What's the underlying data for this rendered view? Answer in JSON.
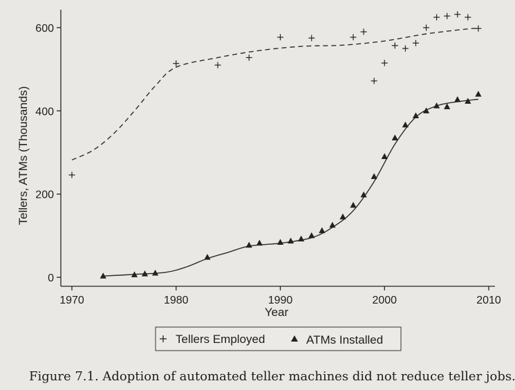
{
  "chart_data": {
    "type": "scatter",
    "xlabel": "Year",
    "ylabel": "Tellers, ATMs (Thousands)",
    "xlim": [
      1970,
      2010
    ],
    "ylim": [
      0,
      600
    ],
    "xticks": [
      1970,
      1980,
      1990,
      2000,
      2010
    ],
    "yticks": [
      0,
      200,
      400,
      600
    ],
    "grid": false,
    "legend": "bottom",
    "series": [
      {
        "name": "Tellers Employed",
        "marker": "plus",
        "fit_line": "dashed",
        "points": [
          [
            1970,
            246
          ],
          [
            1980,
            514
          ],
          [
            1984,
            510
          ],
          [
            1987,
            528
          ],
          [
            1990,
            577
          ],
          [
            1993,
            575
          ],
          [
            1997,
            577
          ],
          [
            1998,
            590
          ],
          [
            1999,
            472
          ],
          [
            2000,
            515
          ],
          [
            2001,
            557
          ],
          [
            2002,
            550
          ],
          [
            2003,
            563
          ],
          [
            2004,
            600
          ],
          [
            2005,
            625
          ],
          [
            2006,
            628
          ],
          [
            2007,
            632
          ],
          [
            2008,
            625
          ],
          [
            2009,
            598
          ]
        ],
        "fit": [
          [
            1970,
            282
          ],
          [
            1972,
            305
          ],
          [
            1974,
            345
          ],
          [
            1976,
            400
          ],
          [
            1978,
            460
          ],
          [
            1980,
            505
          ],
          [
            1984,
            528
          ],
          [
            1988,
            545
          ],
          [
            1992,
            555
          ],
          [
            1996,
            558
          ],
          [
            2000,
            568
          ],
          [
            2004,
            585
          ],
          [
            2008,
            597
          ],
          [
            2009,
            598
          ]
        ]
      },
      {
        "name": "ATMs Installed",
        "marker": "triangle",
        "fit_line": "solid",
        "points": [
          [
            1973,
            3
          ],
          [
            1976,
            6
          ],
          [
            1977,
            8
          ],
          [
            1978,
            10
          ],
          [
            1983,
            48
          ],
          [
            1987,
            77
          ],
          [
            1988,
            82
          ],
          [
            1990,
            84
          ],
          [
            1991,
            87
          ],
          [
            1992,
            92
          ],
          [
            1993,
            100
          ],
          [
            1994,
            112
          ],
          [
            1995,
            125
          ],
          [
            1996,
            145
          ],
          [
            1997,
            173
          ],
          [
            1998,
            198
          ],
          [
            1999,
            242
          ],
          [
            2000,
            290
          ],
          [
            2001,
            335
          ],
          [
            2002,
            366
          ],
          [
            2003,
            388
          ],
          [
            2004,
            400
          ],
          [
            2005,
            412
          ],
          [
            2006,
            410
          ],
          [
            2007,
            427
          ],
          [
            2008,
            423
          ],
          [
            2009,
            440
          ]
        ],
        "fit": [
          [
            1973,
            3
          ],
          [
            1976,
            7
          ],
          [
            1979,
            12
          ],
          [
            1981,
            25
          ],
          [
            1983,
            45
          ],
          [
            1985,
            60
          ],
          [
            1987,
            75
          ],
          [
            1990,
            82
          ],
          [
            1993,
            95
          ],
          [
            1995,
            120
          ],
          [
            1997,
            160
          ],
          [
            1999,
            230
          ],
          [
            2001,
            320
          ],
          [
            2003,
            385
          ],
          [
            2005,
            412
          ],
          [
            2007,
            422
          ],
          [
            2009,
            428
          ]
        ]
      }
    ]
  },
  "legend": {
    "tellers_label": "Tellers Employed",
    "atms_label": "ATMs Installed"
  },
  "caption": "Figure 7.1. Adoption of automated teller machines did not reduce teller jobs."
}
